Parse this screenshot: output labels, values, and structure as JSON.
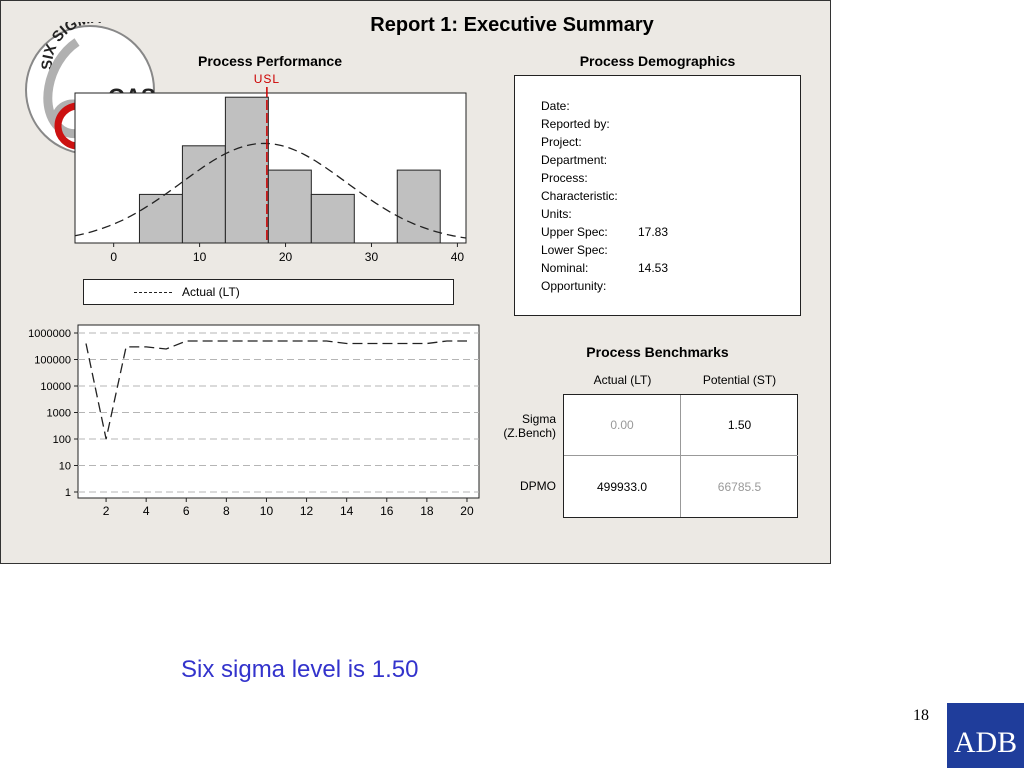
{
  "logo": {
    "arc_text": "SIX SIGMA",
    "brand": "OAS"
  },
  "report": {
    "title": "Report 1: Executive Summary",
    "performance_title": "Process Performance",
    "demographics_title": "Process Demographics",
    "benchmarks_title": "Process Benchmarks",
    "usl_label": "USL",
    "legend_label": "Actual (LT)",
    "demographics": [
      {
        "label": "Date:",
        "value": ""
      },
      {
        "label": "Reported by:",
        "value": ""
      },
      {
        "label": "Project:",
        "value": ""
      },
      {
        "label": "Department:",
        "value": ""
      },
      {
        "label": "Process:",
        "value": ""
      },
      {
        "label": "Characteristic:",
        "value": ""
      },
      {
        "label": "Units:",
        "value": ""
      },
      {
        "label": "Upper Spec:",
        "value": "17.83"
      },
      {
        "label": "Lower Spec:",
        "value": ""
      },
      {
        "label": "Nominal:",
        "value": "14.53"
      },
      {
        "label": "Opportunity:",
        "value": ""
      }
    ],
    "benchmarks": {
      "col_headers": [
        "Actual (LT)",
        "Potential (ST)"
      ],
      "sigma_label_1": "Sigma",
      "sigma_label_2": "(Z.Bench)",
      "dpmo_label": "DPMO",
      "sigma_actual": "0.00",
      "sigma_potential": "1.50",
      "dpmo_actual": "499933.0",
      "dpmo_potential": "66785.5"
    }
  },
  "caption": "Six sigma level is 1.50",
  "page_number": "18",
  "footer_logo": "ADB",
  "colors": {
    "usl": "#cc0000",
    "caption": "#3333cc",
    "adb_blue": "#1f3d9b",
    "bar_fill": "#c0c0c0"
  },
  "chart_data": [
    {
      "type": "bar",
      "title": "Process Performance",
      "bins": [
        [
          3,
          8
        ],
        [
          8,
          13
        ],
        [
          13,
          18
        ],
        [
          18,
          23
        ],
        [
          23,
          28
        ],
        [
          28,
          33
        ],
        [
          33,
          38
        ]
      ],
      "values": [
        2,
        4,
        6,
        3,
        2,
        0,
        3
      ],
      "xticks": [
        0,
        10,
        20,
        30,
        40
      ],
      "xlim": [
        -4.5,
        41
      ],
      "usl": 17.83,
      "normal_curve": {
        "mean": 17.5,
        "sd": 9.6,
        "name": "Actual (LT)"
      }
    },
    {
      "type": "line",
      "yscale": "log",
      "ylim": [
        1,
        1000000
      ],
      "yticks": [
        1,
        10,
        100,
        1000,
        10000,
        100000,
        1000000
      ],
      "ytick_labels": [
        "1",
        "10",
        "100",
        "1000",
        "10000",
        "100000",
        "1000000"
      ],
      "xticks": [
        2,
        4,
        6,
        8,
        10,
        12,
        14,
        16,
        18,
        20
      ],
      "xlim": [
        0.6,
        20.6
      ],
      "grid": true,
      "series": [
        {
          "x": [
            1,
            2,
            3,
            4,
            5,
            6,
            7,
            8,
            9,
            10,
            11,
            12,
            13,
            14,
            15,
            16,
            17,
            18,
            19,
            20
          ],
          "y": [
            400000,
            100,
            300000,
            300000,
            250000,
            500000,
            500000,
            500000,
            500000,
            500000,
            500000,
            500000,
            500000,
            400000,
            400000,
            400000,
            400000,
            400000,
            500000,
            500000
          ]
        }
      ]
    }
  ]
}
